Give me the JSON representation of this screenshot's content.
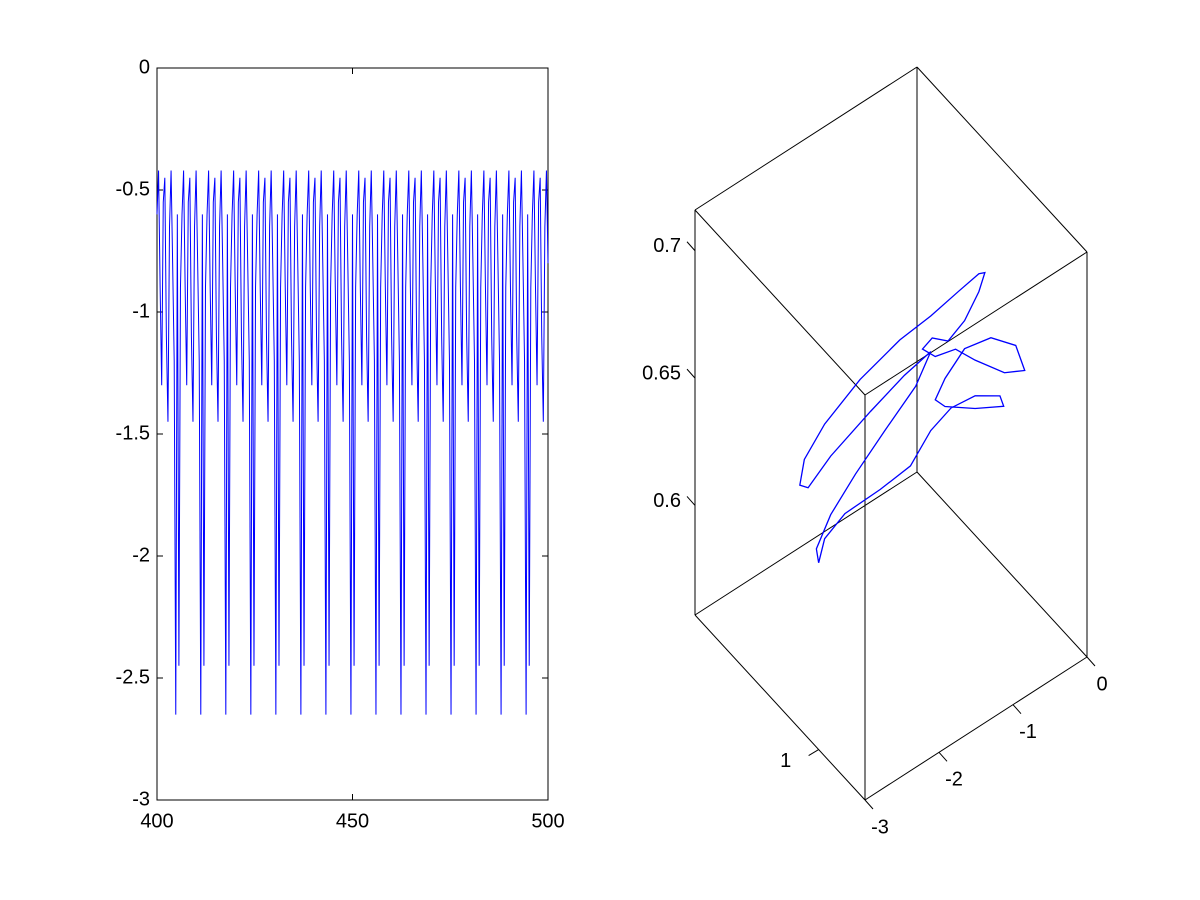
{
  "chart_data": [
    {
      "type": "line",
      "x": [
        400,
        400.4,
        400.8,
        401.2,
        401.6,
        402,
        402.4,
        402.8,
        403.2,
        403.6,
        404,
        404.4,
        404.8,
        405.2,
        405.6,
        406,
        406.4,
        406.8,
        407.2,
        407.6,
        408,
        408.4,
        408.8,
        409.2,
        409.6,
        410,
        410.4,
        410.8,
        411.2,
        411.6,
        412,
        412.4,
        412.8,
        413.2,
        413.6,
        414,
        414.4,
        414.8,
        415.2,
        415.6,
        416,
        416.4,
        416.8,
        417.2,
        417.6,
        418,
        418.4,
        418.8,
        419.2,
        419.6,
        420,
        420.4,
        420.8,
        421.2,
        421.6,
        422,
        422.4,
        422.8,
        423.2,
        423.6,
        424,
        424.4,
        424.8,
        425.2,
        425.6,
        426,
        426.4,
        426.8,
        427.2,
        427.6,
        428,
        428.4,
        428.8,
        429.2,
        429.6,
        430,
        430.4,
        430.8,
        431.2,
        431.6,
        432,
        432.4,
        432.8,
        433.2,
        433.6,
        434,
        434.4,
        434.8,
        435.2,
        435.6,
        436,
        436.4,
        436.8,
        437.2,
        437.6,
        438,
        438.4,
        438.8,
        439.2,
        439.6,
        440,
        440.4,
        440.8,
        441.2,
        441.6,
        442,
        442.4,
        442.8,
        443.2,
        443.6,
        444,
        444.4,
        444.8,
        445.2,
        445.6,
        446,
        446.4,
        446.8,
        447.2,
        447.6,
        448,
        448.4,
        448.8,
        449.2,
        449.6,
        450,
        450.4,
        450.8,
        451.2,
        451.6,
        452,
        452.4,
        452.8,
        453.2,
        453.6,
        454,
        454.4,
        454.8,
        455.2,
        455.6,
        456,
        456.4,
        456.8,
        457.2,
        457.6,
        458,
        458.4,
        458.8,
        459.2,
        459.6,
        460,
        460.4,
        460.8,
        461.2,
        461.6,
        462,
        462.4,
        462.8,
        463.2,
        463.6,
        464,
        464.4,
        464.8,
        465.2,
        465.6,
        466,
        466.4,
        466.8,
        467.2,
        467.6,
        468,
        468.4,
        468.8,
        469.2,
        469.6,
        470,
        470.4,
        470.8,
        471.2,
        471.6,
        472,
        472.4,
        472.8,
        473.2,
        473.6,
        474,
        474.4,
        474.8,
        475.2,
        475.6,
        476,
        476.4,
        476.8,
        477.2,
        477.6,
        478,
        478.4,
        478.8,
        479.2,
        479.6,
        480,
        480.4,
        480.8,
        481.2,
        481.6,
        482,
        482.4,
        482.8,
        483.2,
        483.6,
        484,
        484.4,
        484.8,
        485.2,
        485.6,
        486,
        486.4,
        486.8,
        487.2,
        487.6,
        488,
        488.4,
        488.8,
        489.2,
        489.6,
        490,
        490.4,
        490.8,
        491.2,
        491.6,
        492,
        492.4,
        492.8,
        493.2,
        493.6,
        494,
        494.4,
        494.8,
        495.2,
        495.6,
        496,
        496.4,
        496.8,
        497.2,
        497.6,
        498,
        498.4,
        498.8,
        499.2,
        499.6,
        500
      ],
      "series": [
        {
          "color": "#0000ff",
          "values": [
            -0.6,
            -0.42,
            -0.9,
            -1.3,
            -0.55,
            -0.45,
            -1.1,
            -1.45,
            -0.65,
            -0.42,
            -0.8,
            -1.2,
            -2.65,
            -0.6,
            -2.45,
            -0.9,
            -0.6,
            -0.42,
            -0.9,
            -1.3,
            -0.55,
            -0.45,
            -1.1,
            -1.45,
            -0.65,
            -0.42,
            -0.8,
            -1.2,
            -2.65,
            -0.6,
            -2.45,
            -0.9,
            -0.6,
            -0.42,
            -0.9,
            -1.3,
            -0.55,
            -0.45,
            -1.1,
            -1.45,
            -0.65,
            -0.42,
            -0.8,
            -1.2,
            -2.65,
            -0.6,
            -2.45,
            -0.9,
            -0.6,
            -0.42,
            -0.9,
            -1.3,
            -0.55,
            -0.45,
            -1.1,
            -1.45,
            -0.65,
            -0.42,
            -0.8,
            -1.2,
            -2.65,
            -0.6,
            -2.45,
            -0.9,
            -0.6,
            -0.42,
            -0.9,
            -1.3,
            -0.55,
            -0.45,
            -1.1,
            -1.45,
            -0.65,
            -0.42,
            -0.8,
            -1.2,
            -2.65,
            -0.6,
            -2.45,
            -0.9,
            -0.6,
            -0.42,
            -0.9,
            -1.3,
            -0.55,
            -0.45,
            -1.1,
            -1.45,
            -0.65,
            -0.42,
            -0.8,
            -1.2,
            -2.65,
            -0.6,
            -2.45,
            -0.9,
            -0.6,
            -0.42,
            -0.9,
            -1.3,
            -0.55,
            -0.45,
            -1.1,
            -1.45,
            -0.65,
            -0.42,
            -0.8,
            -1.2,
            -2.65,
            -0.6,
            -2.45,
            -0.9,
            -0.6,
            -0.42,
            -0.9,
            -1.3,
            -0.55,
            -0.45,
            -1.1,
            -1.45,
            -0.65,
            -0.42,
            -0.8,
            -1.2,
            -2.65,
            -0.6,
            -2.45,
            -0.9,
            -0.6,
            -0.42,
            -0.9,
            -1.3,
            -0.55,
            -0.45,
            -1.1,
            -1.45,
            -0.65,
            -0.42,
            -0.8,
            -1.2,
            -2.65,
            -0.6,
            -2.45,
            -0.9,
            -0.6,
            -0.42,
            -0.9,
            -1.3,
            -0.55,
            -0.45,
            -1.1,
            -1.45,
            -0.65,
            -0.42,
            -0.8,
            -1.2,
            -2.65,
            -0.6,
            -2.45,
            -0.9,
            -0.6,
            -0.42,
            -0.9,
            -1.3,
            -0.55,
            -0.45,
            -1.1,
            -1.45,
            -0.65,
            -0.42,
            -0.8,
            -1.2,
            -2.65,
            -0.6,
            -2.45,
            -0.9,
            -0.6,
            -0.42,
            -0.9,
            -1.3,
            -0.55,
            -0.45,
            -1.1,
            -1.45,
            -0.65,
            -0.42,
            -0.8,
            -1.2,
            -2.65,
            -0.6,
            -2.45,
            -0.9,
            -0.6,
            -0.42,
            -0.9,
            -1.3,
            -0.55,
            -0.45,
            -1.1,
            -1.45,
            -0.65,
            -0.42,
            -0.8,
            -1.2,
            -2.65,
            -0.6,
            -2.45,
            -0.9,
            -0.6,
            -0.42,
            -0.9,
            -1.3,
            -0.55,
            -0.45,
            -1.1,
            -1.45,
            -0.65,
            -0.42,
            -0.8,
            -1.2,
            -2.65,
            -0.6,
            -2.45,
            -0.9,
            -0.6,
            -0.42,
            -0.9,
            -1.3,
            -0.55,
            -0.45,
            -1.1,
            -1.45,
            -0.65,
            -0.42,
            -0.8,
            -1.2,
            -2.65,
            -0.6,
            -2.45,
            -0.9,
            -0.6,
            -0.42,
            -0.9,
            -1.3,
            -0.55,
            -0.45,
            -1.1,
            -1.45,
            -0.65,
            -0.42,
            -0.8
          ]
        }
      ],
      "xlim": [
        400,
        500
      ],
      "ylim": [
        -3,
        0
      ],
      "xticks": [
        400,
        450,
        500
      ],
      "yticks": [
        -3,
        -2.5,
        -2,
        -1.5,
        -1,
        -0.5,
        0
      ]
    },
    {
      "type": "line3d",
      "x": [
        -2.06,
        -2.0,
        -1.83,
        -1.54,
        -1.3,
        -1.13,
        -0.96,
        -0.76,
        -0.55,
        -0.52,
        -0.76,
        -1.0,
        -1.09,
        -1.0,
        -0.84,
        -0.63,
        -0.42,
        -0.34,
        -0.51,
        -0.76,
        -0.92,
        -1.09,
        -1.2,
        -1.11,
        -0.98,
        -0.84,
        -0.73,
        -0.67,
        -0.73,
        -0.9,
        -1.13,
        -1.38,
        -1.71,
        -2.0,
        -2.17,
        -2.21,
        -2.14,
        -1.96,
        -1.63,
        -1.34,
        -1.13,
        -1.25,
        -1.5,
        -1.75,
        -1.96,
        -2.07,
        -2.06
      ],
      "y": [
        0.55,
        0.56,
        0.61,
        0.7,
        0.78,
        0.83,
        0.88,
        0.94,
        1.0,
        1.01,
        0.94,
        0.86,
        0.84,
        0.86,
        0.91,
        0.98,
        1.04,
        1.06,
        1.01,
        0.94,
        0.89,
        0.84,
        0.81,
        0.83,
        0.87,
        0.91,
        0.95,
        0.96,
        0.95,
        0.9,
        0.83,
        0.75,
        0.65,
        0.56,
        0.51,
        0.5,
        0.52,
        0.58,
        0.68,
        0.76,
        0.83,
        0.79,
        0.71,
        0.64,
        0.58,
        0.54,
        0.55
      ],
      "z": [
        0.583,
        0.592,
        0.602,
        0.612,
        0.622,
        0.636,
        0.645,
        0.65,
        0.65,
        0.646,
        0.645,
        0.645,
        0.648,
        0.656,
        0.668,
        0.673,
        0.67,
        0.66,
        0.659,
        0.664,
        0.668,
        0.665,
        0.668,
        0.672,
        0.671,
        0.679,
        0.691,
        0.698,
        0.698,
        0.691,
        0.681,
        0.671,
        0.655,
        0.637,
        0.623,
        0.613,
        0.612,
        0.625,
        0.643,
        0.657,
        0.667,
        0.653,
        0.635,
        0.618,
        0.602,
        0.588,
        0.583
      ],
      "color": "#0000ff",
      "xlim": [
        -3,
        0
      ],
      "ylim": [
        0.2,
        1.3
      ],
      "zlim": [
        0.557,
        0.716
      ],
      "xticks": [
        -3,
        -2,
        -1,
        0
      ],
      "yticks": [
        1
      ],
      "zticks": [
        0.6,
        0.65,
        0.7
      ]
    }
  ]
}
